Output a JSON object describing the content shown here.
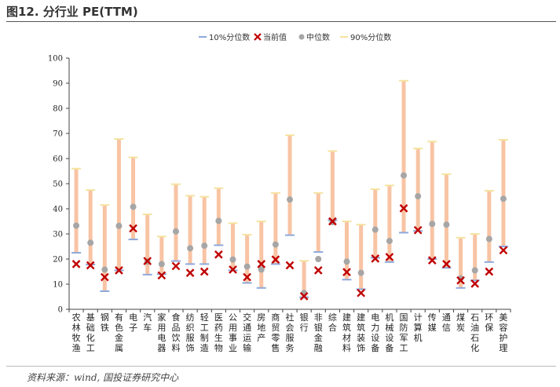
{
  "figure": {
    "title": "图12. 分行业 PE(TTM)",
    "source": "资料来源：wind, 国投证券研究中心"
  },
  "legend": {
    "p10": "10%分位数",
    "current": "当前值",
    "median": "中位数",
    "p90": "90%分位数"
  },
  "colors": {
    "range_bar": "#f8c4a4",
    "p10_tick": "#8ea9db",
    "p90_tick": "#f5e3a0",
    "median_dot": "#a6a6a6",
    "current_marker": "#c00000",
    "axis": "#444444"
  },
  "chart_data": {
    "type": "range-bar with markers",
    "title": "",
    "xlabel": "",
    "ylabel": "",
    "ylim": [
      0,
      100
    ],
    "yticks": [
      0,
      10,
      20,
      30,
      40,
      50,
      60,
      70,
      80,
      90,
      100
    ],
    "grid": false,
    "legend_position": "top-center",
    "categories": [
      "农林牧渔",
      "基础化工",
      "钢铁",
      "有色金属",
      "电子",
      "汽车",
      "家用电器",
      "食品饮料",
      "纺织服饰",
      "轻工制造",
      "医药生物",
      "公用事业",
      "交通运输",
      "房地产",
      "商贸零售",
      "社会服务",
      "银行",
      "非银金融",
      "综合",
      "建筑材料",
      "建筑装饰",
      "电力设备",
      "机械设备",
      "国防军工",
      "计算机",
      "传媒",
      "通信",
      "煤炭",
      "石油石化",
      "环保",
      "美容护理"
    ],
    "series": [
      {
        "name": "10%分位数",
        "values": [
          22.5,
          17.8,
          7.2,
          15.5,
          27.8,
          13.8,
          14.0,
          19.2,
          18.0,
          18.0,
          25.5,
          15.5,
          10.5,
          8.5,
          18.0,
          29.5,
          4.8,
          22.8,
          35.5,
          11.8,
          8.0,
          20.5,
          18.8,
          30.5,
          31.2,
          20.0,
          16.5,
          8.5,
          11.5,
          18.8,
          25.0
        ]
      },
      {
        "name": "当前值",
        "values": [
          18.0,
          17.5,
          12.8,
          15.5,
          32.2,
          19.2,
          13.5,
          17.2,
          14.5,
          15.0,
          21.8,
          15.8,
          12.8,
          18.0,
          19.8,
          17.5,
          5.2,
          15.5,
          35.0,
          14.8,
          6.5,
          20.2,
          20.8,
          40.2,
          31.5,
          19.5,
          18.0,
          11.5,
          10.2,
          15.0,
          23.5
        ]
      },
      {
        "name": "中位数",
        "values": [
          33.3,
          26.5,
          15.8,
          33.2,
          40.8,
          19.0,
          18.0,
          31.0,
          24.3,
          25.3,
          35.2,
          19.8,
          17.0,
          15.8,
          25.8,
          43.7,
          6.5,
          20.0,
          34.7,
          19.0,
          14.5,
          31.7,
          27.2,
          53.3,
          45.0,
          34.0,
          33.7,
          12.3,
          15.5,
          28.0,
          44.0
        ]
      },
      {
        "name": "90%分位数",
        "values": [
          56.0,
          47.5,
          41.5,
          67.8,
          60.5,
          37.8,
          29.0,
          49.8,
          45.2,
          44.8,
          48.2,
          34.3,
          29.7,
          35.0,
          46.3,
          69.3,
          19.3,
          46.3,
          63.0,
          35.0,
          33.7,
          47.8,
          49.3,
          91.0,
          64.0,
          66.8,
          53.8,
          28.5,
          30.0,
          47.2,
          67.5
        ]
      }
    ]
  }
}
